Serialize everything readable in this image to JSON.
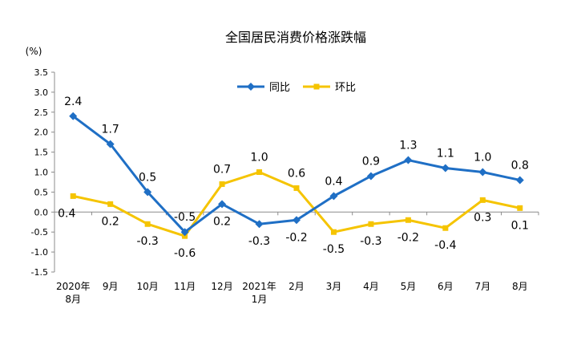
{
  "chart_data": {
    "type": "line",
    "title": "全国居民消费价格涨跌幅",
    "ylabel": "(%)",
    "xlabel": "",
    "ylim": [
      -1.5,
      3.5
    ],
    "yticks": [
      "3.5",
      "3.0",
      "2.5",
      "2.0",
      "1.5",
      "1.0",
      "0.5",
      "0.0",
      "-0.5",
      "-1.0",
      "-1.5"
    ],
    "categories": [
      [
        "2020年",
        "8月"
      ],
      [
        "9月"
      ],
      [
        "10月"
      ],
      [
        "11月"
      ],
      [
        "12月"
      ],
      [
        "2021年",
        "1月"
      ],
      [
        "2月"
      ],
      [
        "3月"
      ],
      [
        "4月"
      ],
      [
        "5月"
      ],
      [
        "6月"
      ],
      [
        "7月"
      ],
      [
        "8月"
      ]
    ],
    "series": [
      {
        "name": "同比",
        "color": "#1f6fc5",
        "marker": "diamond",
        "values": [
          2.4,
          1.7,
          0.5,
          -0.5,
          0.2,
          -0.3,
          -0.2,
          0.4,
          0.9,
          1.3,
          1.1,
          1.0,
          0.8
        ],
        "labels": [
          "2.4",
          "1.7",
          "0.5",
          "-0.5",
          "0.2",
          "-0.3",
          "-0.2",
          "0.4",
          "0.9",
          "1.3",
          "1.1",
          "1.0",
          "0.8"
        ]
      },
      {
        "name": "环比",
        "color": "#f5c400",
        "marker": "square",
        "values": [
          0.4,
          0.2,
          -0.3,
          -0.6,
          0.7,
          1.0,
          0.6,
          -0.5,
          -0.3,
          -0.2,
          -0.4,
          0.3,
          0.1
        ],
        "labels": [
          "0.4",
          "0.2",
          "-0.3",
          "-0.6",
          "0.7",
          "1.0",
          "0.6",
          "-0.5",
          "-0.3",
          "-0.2",
          "-0.4",
          "0.3",
          "0.1"
        ]
      }
    ],
    "legend_position": "top-center",
    "grid": false
  }
}
